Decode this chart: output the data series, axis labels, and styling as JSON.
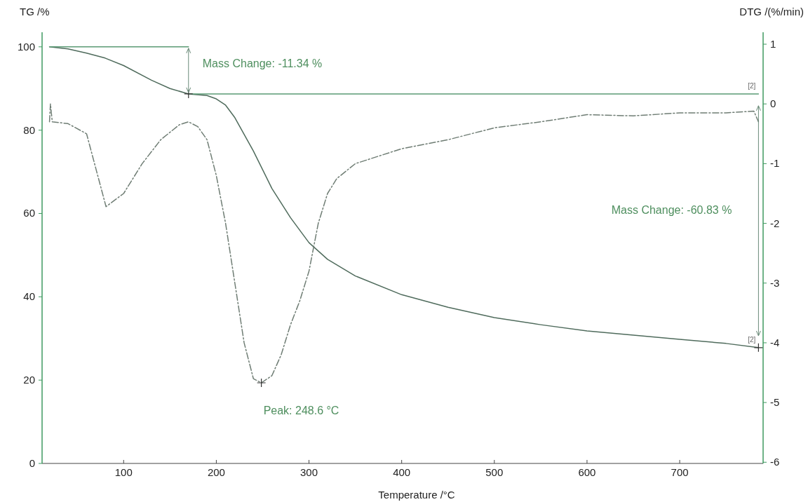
{
  "chart_data": {
    "type": "line",
    "xlabel": "Temperature /°C",
    "ylabel": "TG /%",
    "y2label": "DTG /(%/min)",
    "xlim": [
      12,
      790
    ],
    "xticks": [
      100,
      200,
      300,
      400,
      500,
      600,
      700
    ],
    "ylim": [
      0,
      103.5
    ],
    "yticks": [
      0,
      20,
      40,
      60,
      80,
      100
    ],
    "y2lim": [
      -6.02,
      1.2
    ],
    "y2ticks": [
      1,
      0,
      -1,
      -2,
      -3,
      -4,
      -5,
      -6
    ],
    "grid": false,
    "series": [
      {
        "type": "line",
        "color": "#4f6b5c",
        "line_style": "solid",
        "x": [
          20,
          40,
          60,
          80,
          100,
          130,
          150,
          170,
          190,
          200,
          210,
          220,
          240,
          260,
          280,
          300,
          320,
          350,
          400,
          450,
          500,
          550,
          600,
          650,
          700,
          750,
          785
        ],
        "values": [
          100,
          99.5,
          98.5,
          97.3,
          95.5,
          92,
          90,
          88.7,
          88.3,
          87.5,
          86,
          83,
          75,
          66,
          59,
          53,
          49,
          45,
          40.5,
          37.5,
          35,
          33.3,
          31.8,
          30.8,
          29.8,
          28.8,
          27.8
        ]
      },
      {
        "type": "line",
        "color": "#6f7d74",
        "line_style": "dashed",
        "axis": "y2",
        "x": [
          20,
          21,
          23,
          40,
          60,
          81,
          100,
          120,
          140,
          160,
          170,
          180,
          190,
          200,
          210,
          220,
          230,
          240,
          248.6,
          260,
          270,
          280,
          290,
          300,
          310,
          320,
          330,
          350,
          380,
          400,
          450,
          500,
          550,
          600,
          650,
          700,
          750,
          780,
          785
        ],
        "values": [
          -0.3,
          0.0,
          -0.3,
          -0.33,
          -0.5,
          -1.72,
          -1.5,
          -1.0,
          -0.6,
          -0.35,
          -0.3,
          -0.38,
          -0.6,
          -1.2,
          -2.0,
          -3.0,
          -4.0,
          -4.6,
          -4.67,
          -4.55,
          -4.2,
          -3.7,
          -3.3,
          -2.8,
          -2.0,
          -1.5,
          -1.25,
          -1.0,
          -0.85,
          -0.75,
          -0.6,
          -0.4,
          -0.3,
          -0.18,
          -0.2,
          -0.15,
          -0.15,
          -0.12,
          -0.3
        ]
      },
      {
        "type": "line",
        "color": "#5a9a74",
        "line_style": "solid",
        "x": [
          20,
          170
        ],
        "values": [
          100,
          100
        ]
      },
      {
        "type": "line",
        "color": "#5a9a74",
        "line_style": "solid",
        "x": [
          170,
          785
        ],
        "values": [
          88.7,
          88.7
        ]
      },
      {
        "type": "scatter",
        "color": "#333333",
        "marker": "cross",
        "x": [
          170,
          785
        ],
        "values": [
          88.7,
          27.8
        ]
      },
      {
        "type": "scatter",
        "color": "#333333",
        "marker": "cross",
        "axis": "y2",
        "x": [
          248.6
        ],
        "values": [
          -4.67
        ]
      }
    ],
    "annotations": [
      "Mass Change: -11.34 %",
      "Mass Change: -60.83 %",
      "Peak: 248.6 °C",
      "[2]",
      "[2]"
    ]
  }
}
